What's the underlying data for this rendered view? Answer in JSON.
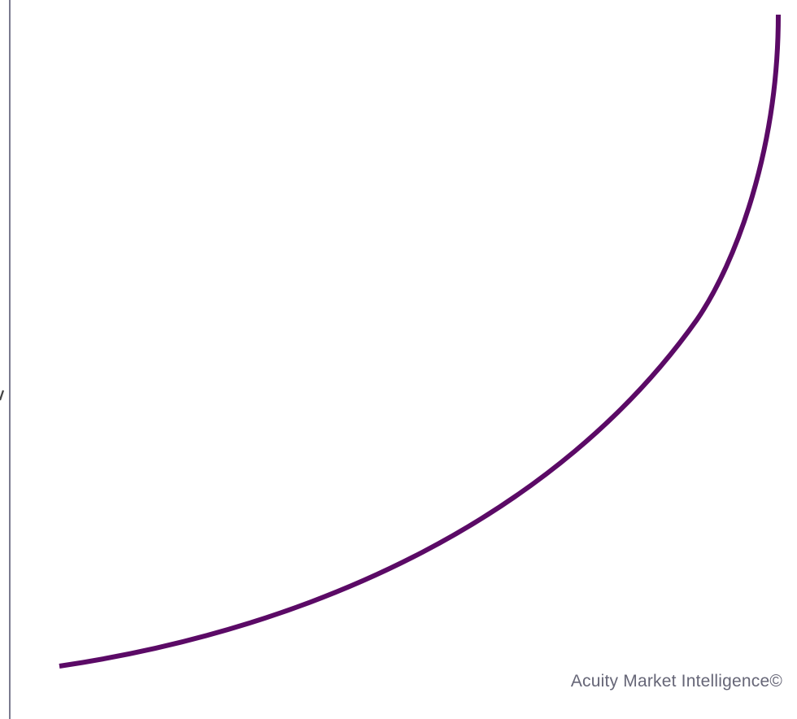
{
  "credit": "Acuity Market Intelligence©",
  "curve": {
    "shape": "exponential growth curve",
    "color": "#5b0a66"
  },
  "axis": {
    "color": "#5a5a74"
  },
  "edge_mark": {
    "color": "#444444"
  }
}
